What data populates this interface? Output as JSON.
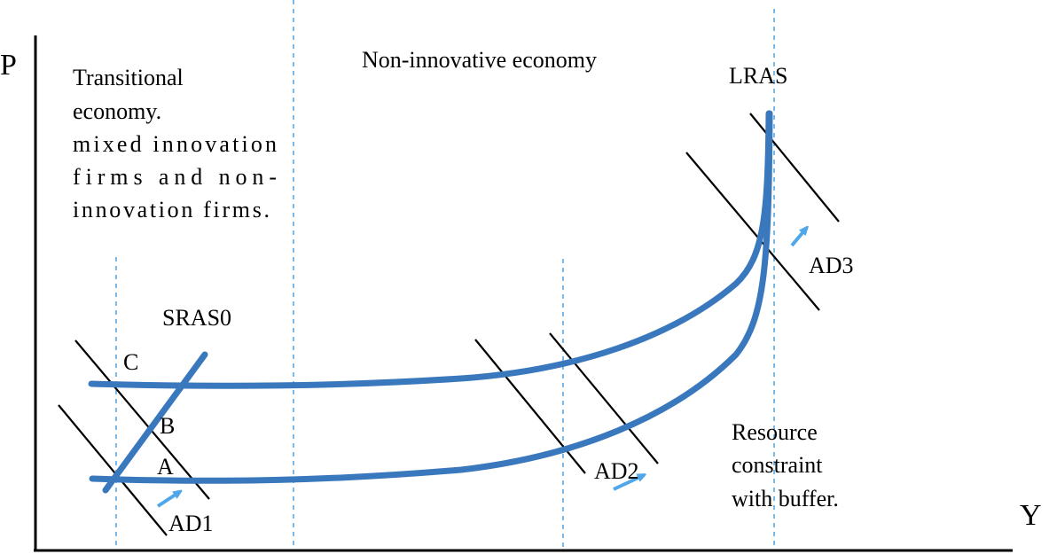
{
  "axes": {
    "y_label": "P",
    "x_label": "Y"
  },
  "regions": {
    "transitional": [
      "Transitional",
      "economy.",
      "mixed innovation",
      "firms and non-",
      "innovation firms."
    ],
    "non_innovative": "Non-innovative economy",
    "resource": [
      "Resource",
      "constraint",
      "with buffer."
    ]
  },
  "curve_labels": {
    "lras": "LRAS",
    "sras0": "SRAS0",
    "ad1": "AD1",
    "ad2": "AD2",
    "ad3": "AD3"
  },
  "points": {
    "a": "A",
    "b": "B",
    "c": "C"
  },
  "colors": {
    "curve": "#3a78bd",
    "guide": "#5aa9e6",
    "arrow": "#4fa7ea",
    "ad_line": "#000000"
  }
}
